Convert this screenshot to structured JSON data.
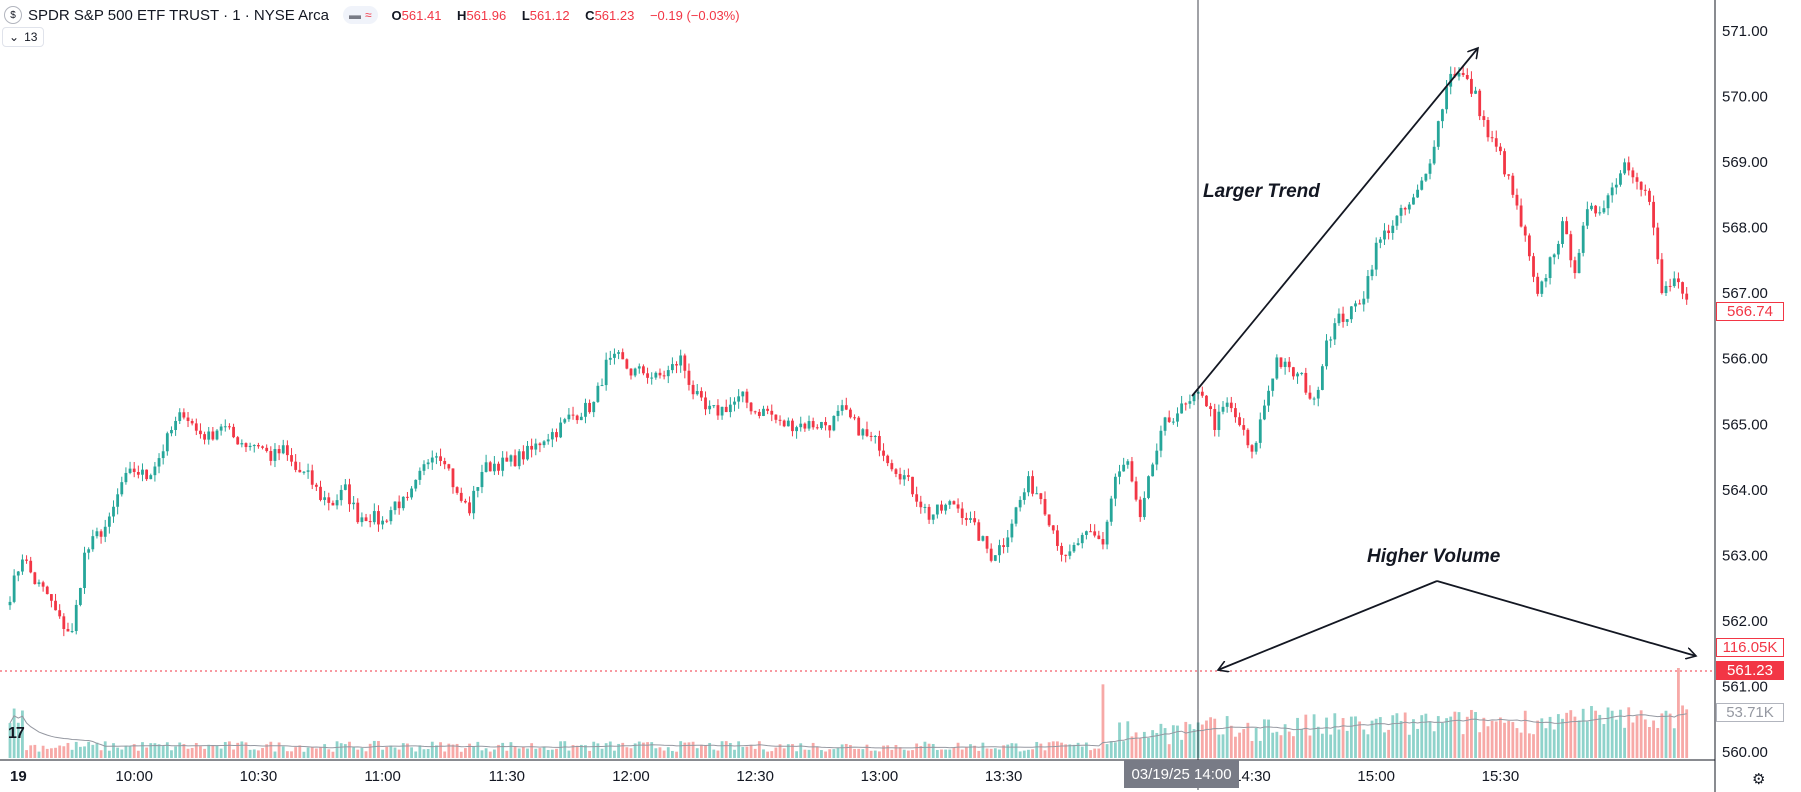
{
  "header": {
    "symbol_icon": "$",
    "title": "SPDR S&P 500 ETF TRUST · 1 · NYSE Arca",
    "badge_icon": "minus-icon",
    "badge_text": "≈",
    "ohlc": {
      "o_label": "O",
      "o": "561.41",
      "h_label": "H",
      "h": "561.96",
      "l_label": "L",
      "l": "561.12",
      "c_label": "C",
      "c": "561.23",
      "change": "−0.19 (−0.03%)"
    },
    "indicator_count": "13"
  },
  "annotations": {
    "trend": "Larger Trend",
    "volume": "Higher Volume"
  },
  "colors": {
    "up": "#26a69a",
    "down": "#f23645",
    "up_vol": "#8fd3cb",
    "down_vol": "#f7a9a7"
  },
  "axis_tags": {
    "last_price": "566.74",
    "current_close": "561.23",
    "volume_last": "116.05K",
    "volume_ma": "53.71K"
  },
  "crosshair_label": "03/19/25  14:00",
  "chart_data": {
    "type": "candlestick",
    "y_ticks": [
      "571.00",
      "570.00",
      "569.00",
      "568.00",
      "567.00",
      "566.00",
      "565.00",
      "564.00",
      "563.00",
      "562.00",
      "561.00",
      "560.00"
    ],
    "ylim": [
      560,
      571
    ],
    "x_ticks": [
      {
        "label": "19",
        "bar": 0
      },
      {
        "label": "10:00",
        "bar": 30
      },
      {
        "label": "10:30",
        "bar": 60
      },
      {
        "label": "11:00",
        "bar": 90
      },
      {
        "label": "11:30",
        "bar": 120
      },
      {
        "label": "12:00",
        "bar": 150
      },
      {
        "label": "12:30",
        "bar": 180
      },
      {
        "label": "13:00",
        "bar": 210
      },
      {
        "label": "13:30",
        "bar": 240
      },
      {
        "label": "14:30",
        "bar": 300
      },
      {
        "label": "15:00",
        "bar": 330
      },
      {
        "label": "15:30",
        "bar": 360
      }
    ],
    "close_path": [
      {
        "bar": 0,
        "price": 562.4
      },
      {
        "bar": 3,
        "price": 563.0
      },
      {
        "bar": 6,
        "price": 562.6
      },
      {
        "bar": 9,
        "price": 562.4
      },
      {
        "bar": 12,
        "price": 562.0
      },
      {
        "bar": 15,
        "price": 561.8
      },
      {
        "bar": 18,
        "price": 563.0
      },
      {
        "bar": 21,
        "price": 563.3
      },
      {
        "bar": 24,
        "price": 563.5
      },
      {
        "bar": 27,
        "price": 564.1
      },
      {
        "bar": 30,
        "price": 564.3
      },
      {
        "bar": 33,
        "price": 564.2
      },
      {
        "bar": 36,
        "price": 564.5
      },
      {
        "bar": 39,
        "price": 564.9
      },
      {
        "bar": 42,
        "price": 565.2
      },
      {
        "bar": 45,
        "price": 564.9
      },
      {
        "bar": 48,
        "price": 564.8
      },
      {
        "bar": 51,
        "price": 565.0
      },
      {
        "bar": 54,
        "price": 564.8
      },
      {
        "bar": 57,
        "price": 564.7
      },
      {
        "bar": 60,
        "price": 564.7
      },
      {
        "bar": 63,
        "price": 564.5
      },
      {
        "bar": 66,
        "price": 564.6
      },
      {
        "bar": 69,
        "price": 564.3
      },
      {
        "bar": 72,
        "price": 564.2
      },
      {
        "bar": 75,
        "price": 563.9
      },
      {
        "bar": 78,
        "price": 563.8
      },
      {
        "bar": 81,
        "price": 564.0
      },
      {
        "bar": 84,
        "price": 563.6
      },
      {
        "bar": 87,
        "price": 563.6
      },
      {
        "bar": 90,
        "price": 563.5
      },
      {
        "bar": 93,
        "price": 563.8
      },
      {
        "bar": 96,
        "price": 563.8
      },
      {
        "bar": 99,
        "price": 564.2
      },
      {
        "bar": 102,
        "price": 564.6
      },
      {
        "bar": 105,
        "price": 564.5
      },
      {
        "bar": 108,
        "price": 563.9
      },
      {
        "bar": 111,
        "price": 563.7
      },
      {
        "bar": 114,
        "price": 564.3
      },
      {
        "bar": 117,
        "price": 564.4
      },
      {
        "bar": 120,
        "price": 564.4
      },
      {
        "bar": 123,
        "price": 564.5
      },
      {
        "bar": 126,
        "price": 564.6
      },
      {
        "bar": 129,
        "price": 564.8
      },
      {
        "bar": 132,
        "price": 564.9
      },
      {
        "bar": 135,
        "price": 565.1
      },
      {
        "bar": 138,
        "price": 565.2
      },
      {
        "bar": 141,
        "price": 565.3
      },
      {
        "bar": 144,
        "price": 565.9
      },
      {
        "bar": 147,
        "price": 566.0
      },
      {
        "bar": 150,
        "price": 565.8
      },
      {
        "bar": 153,
        "price": 565.8
      },
      {
        "bar": 156,
        "price": 565.7
      },
      {
        "bar": 159,
        "price": 565.8
      },
      {
        "bar": 162,
        "price": 566.0
      },
      {
        "bar": 165,
        "price": 565.5
      },
      {
        "bar": 168,
        "price": 565.2
      },
      {
        "bar": 171,
        "price": 565.2
      },
      {
        "bar": 174,
        "price": 565.3
      },
      {
        "bar": 177,
        "price": 565.4
      },
      {
        "bar": 180,
        "price": 565.2
      },
      {
        "bar": 183,
        "price": 565.2
      },
      {
        "bar": 186,
        "price": 565.0
      },
      {
        "bar": 189,
        "price": 565.0
      },
      {
        "bar": 192,
        "price": 565.0
      },
      {
        "bar": 195,
        "price": 565.0
      },
      {
        "bar": 198,
        "price": 565.0
      },
      {
        "bar": 201,
        "price": 565.2
      },
      {
        "bar": 204,
        "price": 565.0
      },
      {
        "bar": 207,
        "price": 564.8
      },
      {
        "bar": 210,
        "price": 564.7
      },
      {
        "bar": 213,
        "price": 564.4
      },
      {
        "bar": 216,
        "price": 564.2
      },
      {
        "bar": 219,
        "price": 563.9
      },
      {
        "bar": 222,
        "price": 563.6
      },
      {
        "bar": 225,
        "price": 563.7
      },
      {
        "bar": 228,
        "price": 563.8
      },
      {
        "bar": 231,
        "price": 563.6
      },
      {
        "bar": 234,
        "price": 563.3
      },
      {
        "bar": 237,
        "price": 563.0
      },
      {
        "bar": 240,
        "price": 563.2
      },
      {
        "bar": 243,
        "price": 563.7
      },
      {
        "bar": 246,
        "price": 564.1
      },
      {
        "bar": 249,
        "price": 563.9
      },
      {
        "bar": 252,
        "price": 563.4
      },
      {
        "bar": 255,
        "price": 562.9
      },
      {
        "bar": 258,
        "price": 563.2
      },
      {
        "bar": 261,
        "price": 563.3
      },
      {
        "bar": 264,
        "price": 563.2
      },
      {
        "bar": 267,
        "price": 564.2
      },
      {
        "bar": 270,
        "price": 564.4
      },
      {
        "bar": 273,
        "price": 563.5
      },
      {
        "bar": 276,
        "price": 564.4
      },
      {
        "bar": 279,
        "price": 565.0
      },
      {
        "bar": 282,
        "price": 565.2
      },
      {
        "bar": 285,
        "price": 565.3
      },
      {
        "bar": 288,
        "price": 565.5
      },
      {
        "bar": 291,
        "price": 565.0
      },
      {
        "bar": 294,
        "price": 565.3
      },
      {
        "bar": 297,
        "price": 565.0
      },
      {
        "bar": 300,
        "price": 564.5
      },
      {
        "bar": 303,
        "price": 565.3
      },
      {
        "bar": 306,
        "price": 566.0
      },
      {
        "bar": 309,
        "price": 565.8
      },
      {
        "bar": 312,
        "price": 565.7
      },
      {
        "bar": 315,
        "price": 565.3
      },
      {
        "bar": 318,
        "price": 566.3
      },
      {
        "bar": 321,
        "price": 566.6
      },
      {
        "bar": 324,
        "price": 566.7
      },
      {
        "bar": 327,
        "price": 567.0
      },
      {
        "bar": 330,
        "price": 567.7
      },
      {
        "bar": 333,
        "price": 568.0
      },
      {
        "bar": 336,
        "price": 568.2
      },
      {
        "bar": 339,
        "price": 568.4
      },
      {
        "bar": 342,
        "price": 568.8
      },
      {
        "bar": 345,
        "price": 569.6
      },
      {
        "bar": 348,
        "price": 570.4
      },
      {
        "bar": 351,
        "price": 570.3
      },
      {
        "bar": 354,
        "price": 570.0
      },
      {
        "bar": 357,
        "price": 569.4
      },
      {
        "bar": 360,
        "price": 569.1
      },
      {
        "bar": 363,
        "price": 568.5
      },
      {
        "bar": 366,
        "price": 567.8
      },
      {
        "bar": 369,
        "price": 566.9
      },
      {
        "bar": 372,
        "price": 567.5
      },
      {
        "bar": 375,
        "price": 568.0
      },
      {
        "bar": 378,
        "price": 567.4
      },
      {
        "bar": 381,
        "price": 568.2
      },
      {
        "bar": 384,
        "price": 568.3
      },
      {
        "bar": 387,
        "price": 568.6
      },
      {
        "bar": 390,
        "price": 569.0
      },
      {
        "bar": 393,
        "price": 568.8
      },
      {
        "bar": 396,
        "price": 568.4
      },
      {
        "bar": 399,
        "price": 567.0
      },
      {
        "bar": 402,
        "price": 567.2
      },
      {
        "bar": 405,
        "price": 566.8
      }
    ],
    "bar_count": 406,
    "crosshair_bar": 264,
    "volume_max": 116050
  }
}
